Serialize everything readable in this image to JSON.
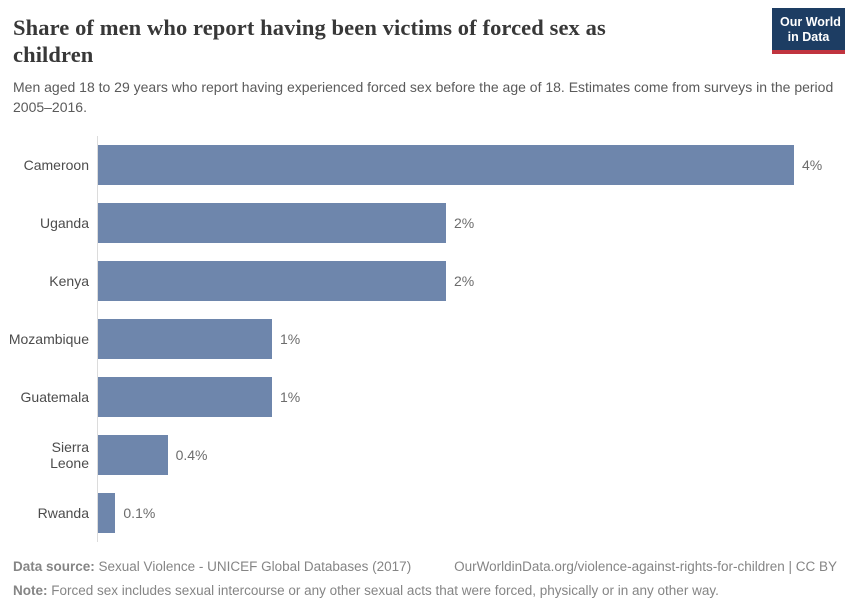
{
  "header": {
    "title": "Share of men who report having been victims of forced sex as children",
    "subtitle": "Men aged 18 to 29 years who report having experienced forced sex before the age of 18. Estimates come from surveys in the period 2005–2016.",
    "logo": {
      "line1": "Our World",
      "line2": "in Data",
      "background_color": "#1d3d63",
      "accent_color": "#c0343f"
    }
  },
  "chart_data": {
    "type": "bar",
    "orientation": "horizontal",
    "title": "Share of men who report having been victims of forced sex as children",
    "categories": [
      "Cameroon",
      "Uganda",
      "Kenya",
      "Mozambique",
      "Guatemala",
      "Sierra Leone",
      "Rwanda"
    ],
    "values": [
      4,
      2,
      2,
      1,
      1,
      0.4,
      0.1
    ],
    "value_labels": [
      "4%",
      "2%",
      "2%",
      "1%",
      "1%",
      "0.4%",
      "0.1%"
    ],
    "unit": "%",
    "xlim": [
      0,
      4.3
    ],
    "grid": false,
    "legend": false,
    "bar_color": "#6e86ac",
    "axis_line_color": "#dcdcdc"
  },
  "footer": {
    "datasource_label": "Data source:",
    "datasource_text": " Sexual Violence - UNICEF Global Databases (2017)",
    "link_text": "OurWorldinData.org/violence-against-rights-for-children | CC BY",
    "note_label": "Note:",
    "note_text": " Forced sex includes sexual intercourse or any other sexual acts that were forced, physically or in any other way."
  }
}
